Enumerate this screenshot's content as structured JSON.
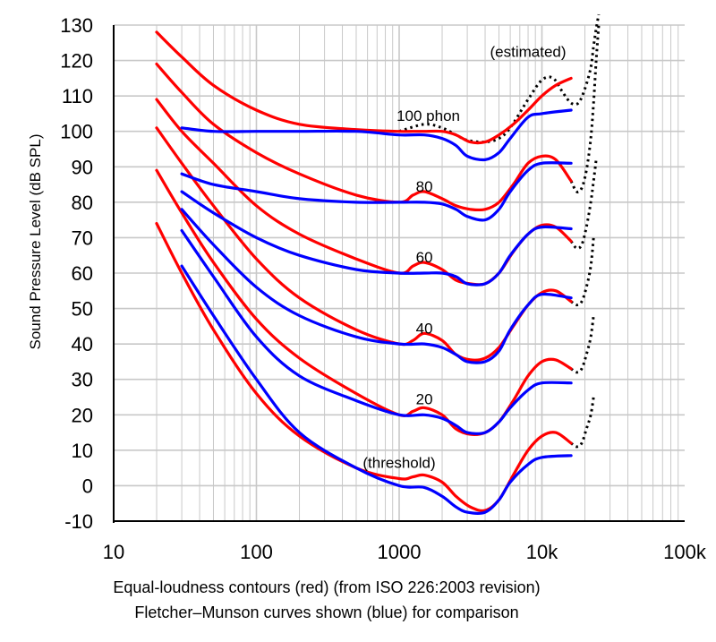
{
  "chart_data": {
    "type": "line",
    "x_scale": "log",
    "xlim": [
      10,
      100000
    ],
    "ylim": [
      -10,
      130
    ],
    "grid": true,
    "ylabel": "Sound Pressure Level (dB SPL)",
    "captions": [
      "Equal-loudness contours (red) (from ISO 226:2003 revision)",
      "Fletcher–Munson curves shown (blue) for comparison"
    ],
    "x_tick_labels": [
      "10",
      "100",
      "1000",
      "10k",
      "100k"
    ],
    "x_tick_values": [
      10,
      100,
      1000,
      10000,
      100000
    ],
    "y_ticks": [
      130,
      120,
      110,
      100,
      90,
      80,
      70,
      60,
      50,
      40,
      30,
      20,
      10,
      0,
      -10
    ],
    "annotations": [
      {
        "text": "(estimated)",
        "x": 8000,
        "y": 121
      },
      {
        "text": "100 phon",
        "x": 1600,
        "y": 103
      },
      {
        "text": "80",
        "x": 1500,
        "y": 83
      },
      {
        "text": "60",
        "x": 1500,
        "y": 63
      },
      {
        "text": "40",
        "x": 1500,
        "y": 43
      },
      {
        "text": "20",
        "x": 1500,
        "y": 23
      },
      {
        "text": "(threshold)",
        "x": 1000,
        "y": 5
      }
    ],
    "colors": {
      "iso": "#ff0000",
      "fletcher_munson": "#0000ff",
      "estimated": "#000000",
      "grid": "#c8c8c8"
    },
    "series": [
      {
        "group": "iso",
        "x": [
          20,
          30,
          50,
          100,
          200,
          500,
          1000,
          1250,
          1500,
          2000,
          2500,
          3150,
          4000,
          5000,
          6300,
          8000,
          10000,
          12500,
          16000
        ],
        "y": [
          128,
          121,
          113,
          106,
          102,
          100.5,
          100,
          100,
          100,
          100,
          99,
          97,
          97,
          99,
          102,
          106,
          110,
          113,
          115
        ]
      },
      {
        "group": "iso",
        "x": [
          20,
          30,
          50,
          100,
          200,
          500,
          1000,
          1250,
          1500,
          2000,
          2500,
          3150,
          4000,
          5000,
          6300,
          8000,
          10000,
          12500,
          16000
        ],
        "y": [
          119,
          111,
          102,
          94,
          88,
          82,
          80,
          82,
          83,
          81,
          79,
          78,
          78,
          80,
          85,
          91,
          93,
          92,
          86
        ]
      },
      {
        "group": "iso",
        "x": [
          20,
          30,
          50,
          100,
          200,
          500,
          1000,
          1250,
          1500,
          2000,
          2500,
          3150,
          4000,
          5000,
          6300,
          8000,
          10000,
          12500,
          16000
        ],
        "y": [
          109,
          100,
          91,
          79,
          71,
          64,
          60,
          62,
          63,
          61,
          58,
          57,
          57,
          60,
          66,
          71,
          73.5,
          73,
          69
        ]
      },
      {
        "group": "iso",
        "x": [
          20,
          30,
          50,
          100,
          200,
          500,
          1000,
          1250,
          1500,
          2000,
          2500,
          3150,
          4000,
          5000,
          6300,
          8000,
          10000,
          12500,
          16000
        ],
        "y": [
          101,
          91,
          79,
          64,
          53,
          44,
          40,
          41,
          43,
          41,
          37,
          35.5,
          36,
          39,
          45,
          51,
          54.5,
          55,
          52
        ]
      },
      {
        "group": "iso",
        "x": [
          20,
          30,
          50,
          100,
          200,
          500,
          1000,
          1250,
          1500,
          2000,
          2500,
          3150,
          4000,
          5000,
          6300,
          8000,
          10000,
          12500,
          16000
        ],
        "y": [
          89,
          77,
          63,
          47,
          36,
          26,
          20,
          21,
          22,
          20,
          16,
          14.5,
          15,
          18,
          24,
          31,
          35,
          35.5,
          33
        ]
      },
      {
        "group": "iso",
        "x": [
          20,
          30,
          50,
          100,
          200,
          500,
          1000,
          1250,
          1500,
          2000,
          2500,
          3150,
          4000,
          5000,
          6300,
          8000,
          10000,
          12500,
          16000
        ],
        "y": [
          74,
          60,
          44,
          26,
          14,
          5,
          2,
          2.5,
          3,
          1,
          -3,
          -6,
          -7,
          -4,
          3,
          10,
          14,
          15,
          12
        ]
      },
      {
        "group": "fletcher_munson",
        "x": [
          30,
          50,
          100,
          200,
          500,
          1000,
          1500,
          2000,
          2500,
          3000,
          4000,
          5000,
          6000,
          8000,
          10000,
          16000
        ],
        "y": [
          101,
          100,
          100,
          100,
          100,
          99,
          99,
          98,
          96,
          93,
          92,
          94,
          98,
          104,
          105,
          106
        ]
      },
      {
        "group": "fletcher_munson",
        "x": [
          30,
          50,
          100,
          200,
          500,
          1000,
          1500,
          2000,
          2500,
          3000,
          4000,
          5000,
          6000,
          8000,
          10000,
          16000
        ],
        "y": [
          88,
          85,
          83,
          81,
          80,
          80,
          80,
          79.5,
          78,
          76,
          75,
          78,
          83,
          89,
          91,
          91
        ]
      },
      {
        "group": "fletcher_munson",
        "x": [
          30,
          50,
          100,
          200,
          500,
          1000,
          1500,
          2000,
          2500,
          3000,
          4000,
          5000,
          6000,
          8000,
          10000,
          16000
        ],
        "y": [
          83,
          77,
          70,
          65,
          61,
          60,
          60,
          60,
          59,
          57,
          57,
          60,
          65,
          71,
          73,
          72.5
        ]
      },
      {
        "group": "fletcher_munson",
        "x": [
          30,
          50,
          100,
          200,
          500,
          1000,
          1500,
          2000,
          2500,
          3000,
          4000,
          5000,
          6000,
          8000,
          10000,
          16000
        ],
        "y": [
          78,
          68,
          56,
          48,
          42,
          40,
          40,
          39,
          37,
          35,
          35,
          38,
          44,
          51,
          54,
          53
        ]
      },
      {
        "group": "fletcher_munson",
        "x": [
          30,
          50,
          100,
          200,
          500,
          1000,
          1500,
          2000,
          2500,
          3000,
          4000,
          5000,
          6000,
          8000,
          10000,
          16000
        ],
        "y": [
          72,
          59,
          42,
          31,
          24,
          20,
          20,
          19,
          17,
          15,
          15,
          18,
          22,
          27,
          29,
          29
        ]
      },
      {
        "group": "fletcher_munson",
        "x": [
          30,
          50,
          100,
          200,
          500,
          1000,
          1500,
          2000,
          2500,
          3000,
          4000,
          5000,
          6000,
          8000,
          10000,
          16000
        ],
        "y": [
          62,
          48,
          30,
          15,
          5,
          0,
          -0.5,
          -3,
          -6,
          -7.5,
          -7.5,
          -4,
          1,
          6,
          8,
          8.5
        ]
      },
      {
        "group": "estimated",
        "x": [
          1000,
          1500,
          2000,
          2500,
          3000,
          4000,
          5000,
          6000,
          8000,
          10000,
          12000,
          14000,
          16000,
          18000,
          20000,
          22000,
          23000,
          24000,
          25000
        ],
        "y": [
          100,
          102,
          101,
          99,
          97.5,
          97,
          98,
          101,
          109,
          114.5,
          115,
          111,
          108,
          108,
          112,
          118,
          124,
          129,
          133
        ]
      },
      {
        "group": "estimated",
        "x": [
          16000,
          17500,
          19000,
          20500,
          22000,
          23000,
          24000,
          25000
        ],
        "y": [
          86,
          83,
          84,
          89,
          98,
          108,
          120,
          130
        ]
      },
      {
        "group": "estimated",
        "x": [
          16000,
          17500,
          19000,
          20500,
          22000,
          23000,
          24000
        ],
        "y": [
          69,
          67,
          68,
          73,
          80,
          86,
          92
        ]
      },
      {
        "group": "estimated",
        "x": [
          16000,
          17500,
          19000,
          20500,
          22000,
          23000
        ],
        "y": [
          52,
          51,
          52,
          56,
          62,
          70
        ]
      },
      {
        "group": "estimated",
        "x": [
          16000,
          17500,
          19000,
          20500,
          22000,
          23000
        ],
        "y": [
          33,
          32,
          33,
          37,
          42,
          48
        ]
      },
      {
        "group": "estimated",
        "x": [
          16000,
          17500,
          19000,
          20500,
          22000,
          23000
        ],
        "y": [
          12,
          11,
          12,
          16,
          20,
          25
        ]
      }
    ]
  }
}
